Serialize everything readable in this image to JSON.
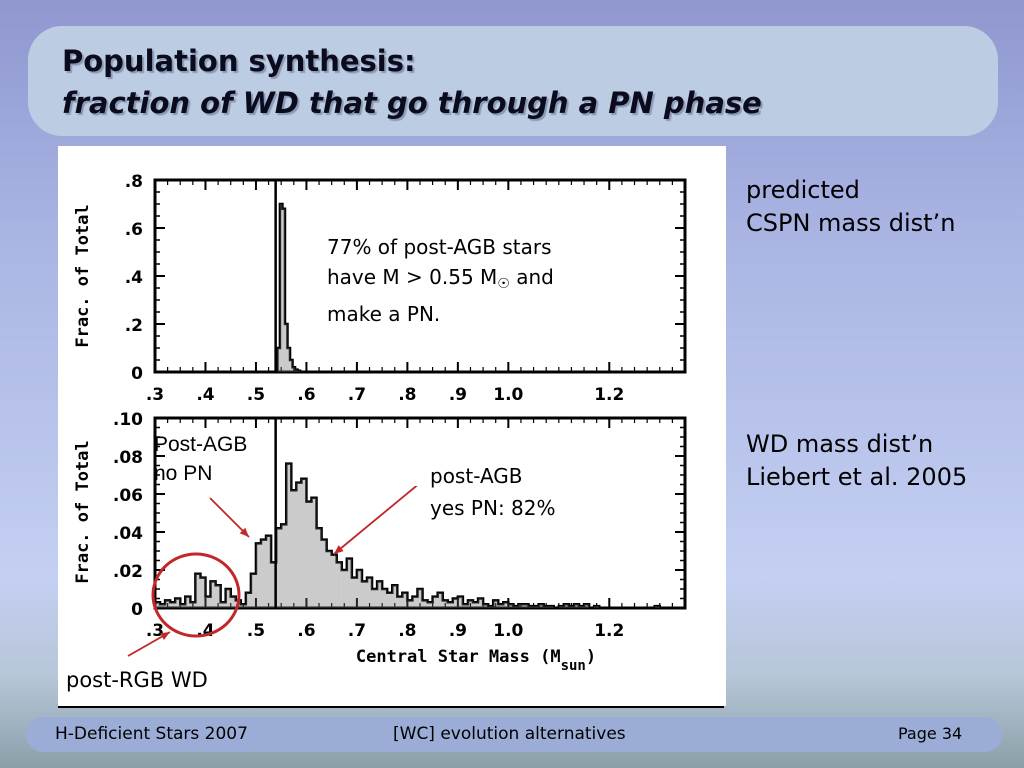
{
  "title": {
    "line1": "Population synthesis:",
    "line2": "fraction of WD that go through a PN phase"
  },
  "side_notes": {
    "cspn": [
      "predicted",
      "CSPN mass dist’n"
    ],
    "wd": [
      "WD mass dist’n",
      "Liebert et al. 2005"
    ]
  },
  "annotations": {
    "pn_fraction": {
      "line1": "77% of post-AGB stars",
      "line2_pre": "have M > 0.55 M",
      "sun_symbol": "☉",
      "line2_post": " and",
      "line3": "make a PN."
    },
    "post_agb_no_pn": [
      "Post-AGB",
      "no PN"
    ],
    "post_agb_yes_pn": [
      "post-AGB",
      "yes PN: 82%"
    ],
    "post_rgb": "post-RGB WD"
  },
  "footer": {
    "left": "H-Deficient Stars 2007",
    "center": "[WC] evolution alternatives",
    "page": "Page 34"
  },
  "colors": {
    "arrow": "#c0282a",
    "circle": "#c0282a",
    "title_text": "#0b0b1e"
  },
  "chart_data": [
    {
      "type": "bar",
      "title": "",
      "xlabel": "",
      "ylabel": "Frac. of Total",
      "xlim": [
        0.3,
        1.35
      ],
      "ylim": [
        0,
        0.8
      ],
      "xticklabels": [
        ".3",
        ".4",
        ".5",
        ".6",
        ".7",
        ".8",
        ".9",
        "1.0",
        "1.2"
      ],
      "xtick_values": [
        0.3,
        0.4,
        0.5,
        0.6,
        0.7,
        0.8,
        0.9,
        1.0,
        1.2
      ],
      "yticklabels": [
        "0",
        ".2",
        ".4",
        ".6",
        ".8"
      ],
      "ytick_values": [
        0,
        0.2,
        0.4,
        0.6,
        0.8
      ],
      "vline_x": 0.539,
      "bin_width": 0.005,
      "bins_x": [
        0.545,
        0.55,
        0.555,
        0.56,
        0.565,
        0.57,
        0.575,
        0.58,
        0.585
      ],
      "values": [
        0.1,
        0.7,
        0.68,
        0.2,
        0.1,
        0.05,
        0.02,
        0.01,
        0.005
      ]
    },
    {
      "type": "bar",
      "title": "",
      "xlabel": "Central Star Mass (Msun)",
      "ylabel": "Frac. of Total",
      "xlim": [
        0.3,
        1.35
      ],
      "ylim": [
        0,
        0.1
      ],
      "xticklabels": [
        ".3",
        ".4",
        ".5",
        ".6",
        ".7",
        ".8",
        ".9",
        "1.0",
        "1.2"
      ],
      "xtick_values": [
        0.3,
        0.4,
        0.5,
        0.6,
        0.7,
        0.8,
        0.9,
        1.0,
        1.2
      ],
      "yticklabels": [
        "0",
        ".02",
        ".04",
        ".06",
        ".08",
        ".10"
      ],
      "ytick_values": [
        0,
        0.02,
        0.04,
        0.06,
        0.08,
        0.1
      ],
      "vline_x": 0.539,
      "bin_width": 0.01,
      "bins_x": [
        0.305,
        0.315,
        0.325,
        0.335,
        0.345,
        0.355,
        0.365,
        0.375,
        0.385,
        0.395,
        0.405,
        0.415,
        0.425,
        0.435,
        0.445,
        0.455,
        0.465,
        0.475,
        0.485,
        0.495,
        0.505,
        0.515,
        0.525,
        0.535,
        0.545,
        0.555,
        0.565,
        0.575,
        0.585,
        0.595,
        0.605,
        0.615,
        0.625,
        0.635,
        0.645,
        0.655,
        0.665,
        0.675,
        0.685,
        0.695,
        0.705,
        0.715,
        0.725,
        0.735,
        0.745,
        0.755,
        0.765,
        0.775,
        0.785,
        0.795,
        0.805,
        0.815,
        0.825,
        0.835,
        0.845,
        0.855,
        0.865,
        0.875,
        0.885,
        0.895,
        0.905,
        0.915,
        0.925,
        0.935,
        0.945,
        0.955,
        0.965,
        0.975,
        0.985,
        0.995,
        1.005,
        1.015,
        1.025,
        1.035,
        1.045,
        1.055,
        1.065,
        1.075,
        1.085,
        1.095,
        1.105,
        1.115,
        1.125,
        1.135,
        1.145,
        1.155,
        1.165,
        1.175,
        1.185,
        1.195,
        1.205,
        1.215,
        1.225,
        1.235,
        1.245,
        1.255,
        1.265,
        1.275,
        1.285,
        1.295
      ],
      "values": [
        0.003,
        0.002,
        0.004,
        0.003,
        0.005,
        0.002,
        0.006,
        0.003,
        0.018,
        0.016,
        0.006,
        0.014,
        0.012,
        0.003,
        0.01,
        0.006,
        0.004,
        0.002,
        0.008,
        0.018,
        0.034,
        0.036,
        0.038,
        0.024,
        0.042,
        0.044,
        0.076,
        0.062,
        0.066,
        0.068,
        0.056,
        0.058,
        0.042,
        0.036,
        0.03,
        0.028,
        0.024,
        0.02,
        0.026,
        0.016,
        0.02,
        0.014,
        0.016,
        0.01,
        0.014,
        0.01,
        0.008,
        0.012,
        0.006,
        0.008,
        0.004,
        0.006,
        0.01,
        0.004,
        0.003,
        0.006,
        0.008,
        0.004,
        0.003,
        0.005,
        0.006,
        0.002,
        0.004,
        0.003,
        0.005,
        0.002,
        0.001,
        0.004,
        0.002,
        0.003,
        0.002,
        0.001,
        0.002,
        0.002,
        0.001,
        0.001,
        0.002,
        0.001,
        0.001,
        0.0,
        0.001,
        0.002,
        0.001,
        0.002,
        0.001,
        0.002,
        0.0,
        0.001,
        0.0,
        0.0,
        0.0,
        0.0,
        0.0,
        0.0,
        0.0,
        0.0,
        0.0,
        0.0,
        0.0,
        0.001
      ]
    }
  ]
}
